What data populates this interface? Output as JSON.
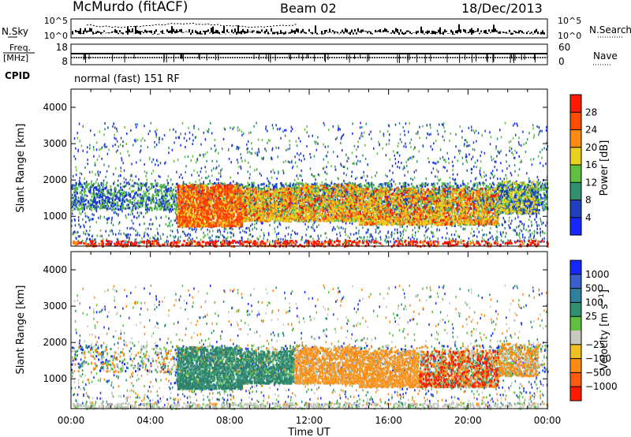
{
  "header": {
    "station": "McMurdo (fitACF)",
    "beam": "Beam 02",
    "date": "18/Dec/2013"
  },
  "left_labels": {
    "nsky": "N.Sky",
    "freq": "Freq.",
    "freq_unit": "[MHz]",
    "cpid": "CPID"
  },
  "right_labels": {
    "nsearch": "N.Search",
    "nave": "Nave"
  },
  "cpid_text": "normal (fast) 151 RF",
  "colors": {
    "blue": "#1428ff",
    "navy": "#1f3fbf",
    "teal": "#2f8f6f",
    "green": "#5fbf3f",
    "yellow": "#e8d020",
    "orange": "#ff8a10",
    "red": "#ff1a00",
    "grey": "#c8c8c0"
  },
  "chart_data": [
    {
      "type": "line",
      "panel": "noise",
      "left_ticks": [
        "10^5",
        "10^0"
      ],
      "right_ticks": [
        "10^5",
        "10^0"
      ],
      "x_ticks": [
        "00:00",
        "04:00",
        "08:00",
        "12:00",
        "16:00",
        "20:00",
        "00:00"
      ]
    },
    {
      "type": "line",
      "panel": "frequency-nave",
      "left_ticks": [
        "18",
        "8"
      ],
      "right_ticks": [
        "60",
        "0"
      ],
      "x_ticks": [
        "00:00",
        "04:00",
        "08:00",
        "12:00",
        "16:00",
        "20:00",
        "00:00"
      ]
    },
    {
      "type": "heatmap",
      "panel": "power",
      "ylabel": "Slant Range [km]",
      "y_ticks": [
        "1000",
        "2000",
        "3000",
        "4000"
      ],
      "ylim": [
        180,
        4500
      ],
      "x_ticks": [
        "00:00",
        "04:00",
        "08:00",
        "12:00",
        "16:00",
        "20:00",
        "00:00"
      ],
      "colorbar_label": "Power [dB]",
      "colorbar_ticks": [
        "4",
        "8",
        "12",
        "16",
        "20",
        "24",
        "28"
      ],
      "colorbar_range": [
        0,
        30
      ]
    },
    {
      "type": "heatmap",
      "panel": "velocity",
      "ylabel": "Slant Range [km]",
      "y_ticks": [
        "1000",
        "2000",
        "3000",
        "4000"
      ],
      "ylim": [
        180,
        4500
      ],
      "x_ticks": [
        "00:00",
        "04:00",
        "08:00",
        "12:00",
        "16:00",
        "20:00",
        "00:00"
      ],
      "xlabel": "Time UT",
      "colorbar_label": "Velocity [m s^-1]",
      "colorbar_ticks": [
        "1000",
        "500",
        "100",
        "25",
        "−25",
        "−100",
        "−500",
        "−1000"
      ]
    }
  ]
}
